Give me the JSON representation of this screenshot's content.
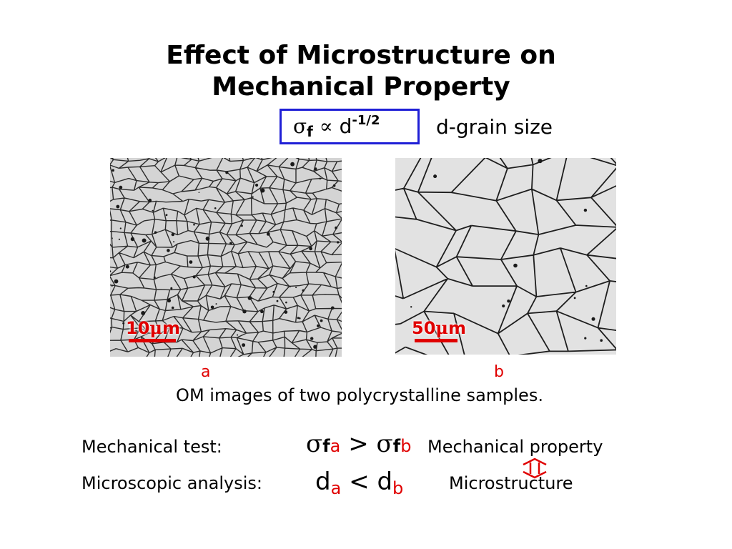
{
  "slide": {
    "title_line1": "Effect of Microstructure on",
    "title_line2": "Mechanical Property"
  },
  "formula": {
    "sigma": "σ",
    "sub": "f",
    "proportional": "∝",
    "d": "d",
    "exponent": "-1/2",
    "note": "d-grain size",
    "box_color": "#1f1fd6"
  },
  "images": {
    "a": {
      "scale_num": "10",
      "scale_mu": "μ",
      "scale_unit": "m",
      "letter": "a"
    },
    "b": {
      "scale_num": "50",
      "scale_mu": "μ",
      "scale_unit": "m",
      "letter": "b"
    },
    "caption": "OM images of two polycrystalline samples."
  },
  "mechanical": {
    "label": "Mechanical test:",
    "sigma": "σ",
    "f": "f",
    "a": "a",
    "relation": ">",
    "b": "b",
    "property": "Mechanical property"
  },
  "microscopic": {
    "label": "Microscopic analysis:",
    "d": "d",
    "a": "a",
    "relation": "<",
    "b": "b",
    "property": "Microstructure"
  },
  "arrow": {
    "icon": "double-arrow-vertical-icon",
    "color": "#e00000"
  },
  "colors": {
    "accent_red": "#e00000",
    "box_blue": "#1f1fd6"
  }
}
